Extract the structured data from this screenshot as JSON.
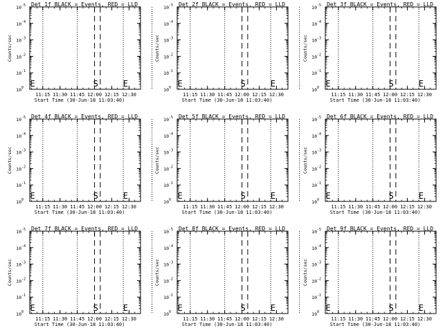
{
  "ytick_labels": [
    "10",
    "10",
    "10",
    "10",
    "10",
    "10"
  ],
  "ytick_exponents": [
    "0",
    "-1",
    "-2",
    "-3",
    "-4",
    "-5"
  ],
  "chart_data": [
    {
      "type": "line",
      "title": "Det 1f BLACK = Events, RED = LLD",
      "ylabel": "Counts/sec",
      "xlabel": "Start Time (30-Jun-18 11:03:40)",
      "xtick_labels": [
        "11:15",
        "11:30",
        "11:45",
        "12:00",
        "12:15",
        "12:30"
      ],
      "ylim": [
        1,
        100000
      ],
      "yscale": "log",
      "dotted_x": [
        11.15,
        11.45,
        12.25,
        12.5
      ],
      "dashed_x": [
        12.0,
        12.05
      ],
      "markers": [
        {
          "label": "S",
          "x": 12.01
        },
        {
          "label": "E",
          "x": 12.27
        },
        {
          "label": "E",
          "x": 11.06
        }
      ],
      "series": []
    },
    {
      "type": "line",
      "title": "Det 2f BLACK = Events, RED = LLD",
      "ylabel": "Counts/sec",
      "xlabel": "Start Time (30-Jun-18 11:03:40)",
      "xtick_labels": [
        "11:15",
        "11:30",
        "11:45",
        "12:00",
        "12:15",
        "12:30"
      ],
      "ylim": [
        1,
        100000
      ],
      "yscale": "log",
      "dotted_x": [
        11.15,
        11.45,
        12.25,
        12.5
      ],
      "dashed_x": [
        12.0,
        12.05
      ],
      "markers": [
        {
          "label": "S",
          "x": 12.01
        },
        {
          "label": "E",
          "x": 12.27
        },
        {
          "label": "E",
          "x": 11.06
        }
      ],
      "series": []
    },
    {
      "type": "line",
      "title": "Det 3f BLACK = Events, RED = LLD",
      "ylabel": "Counts/sec",
      "xlabel": "Start Time (30-Jun-18 11:03:40)",
      "xtick_labels": [
        "11:15",
        "11:30",
        "11:45",
        "12:00",
        "12:15",
        "12:30"
      ],
      "ylim": [
        1,
        100000
      ],
      "yscale": "log",
      "dotted_x": [
        11.15,
        11.45,
        12.25,
        12.5
      ],
      "dashed_x": [
        12.0,
        12.05
      ],
      "markers": [
        {
          "label": "S",
          "x": 12.01
        },
        {
          "label": "E",
          "x": 12.27
        },
        {
          "label": "E",
          "x": 11.06
        }
      ],
      "series": []
    },
    {
      "type": "line",
      "title": "Det 4f BLACK = Events, RED = LLD",
      "ylabel": "Counts/sec",
      "xlabel": "Start Time (30-Jun-18 11:03:40)",
      "xtick_labels": [
        "11:15",
        "11:30",
        "11:45",
        "12:00",
        "12:15",
        "12:30"
      ],
      "ylim": [
        1,
        100000
      ],
      "yscale": "log",
      "dotted_x": [
        11.15,
        11.45,
        12.25,
        12.5
      ],
      "dashed_x": [
        12.0,
        12.05
      ],
      "markers": [
        {
          "label": "S",
          "x": 12.01
        },
        {
          "label": "E",
          "x": 12.27
        },
        {
          "label": "E",
          "x": 11.06
        }
      ],
      "series": []
    },
    {
      "type": "line",
      "title": "Det 5f BLACK = Events, RED = LLD",
      "ylabel": "Counts/sec",
      "xlabel": "Start Time (30-Jun-18 11:03:40)",
      "xtick_labels": [
        "11:15",
        "11:30",
        "11:45",
        "12:00",
        "12:15",
        "12:30"
      ],
      "ylim": [
        1,
        100000
      ],
      "yscale": "log",
      "dotted_x": [
        11.15,
        11.45,
        12.25,
        12.5
      ],
      "dashed_x": [
        12.0,
        12.05
      ],
      "markers": [
        {
          "label": "S",
          "x": 12.01
        },
        {
          "label": "E",
          "x": 12.27
        },
        {
          "label": "E",
          "x": 11.06
        }
      ],
      "series": []
    },
    {
      "type": "line",
      "title": "Det 6f BLACK = Events, RED = LLD",
      "ylabel": "Counts/sec",
      "xlabel": "Start Time (30-Jun-18 11:03:40)",
      "xtick_labels": [
        "11:15",
        "11:30",
        "11:45",
        "12:00",
        "12:15",
        "12:30"
      ],
      "ylim": [
        1,
        100000
      ],
      "yscale": "log",
      "dotted_x": [
        11.15,
        11.45,
        12.25,
        12.5
      ],
      "dashed_x": [
        12.0,
        12.05
      ],
      "markers": [
        {
          "label": "S",
          "x": 12.01
        },
        {
          "label": "E",
          "x": 12.27
        },
        {
          "label": "E",
          "x": 11.06
        }
      ],
      "series": []
    },
    {
      "type": "line",
      "title": "Det 7f BLACK = Events, RED = LLD",
      "ylabel": "Counts/sec",
      "xlabel": "Start Time (30-Jun-18 11:03:40)",
      "xtick_labels": [
        "11:15",
        "11:30",
        "11:45",
        "12:00",
        "12:15",
        "12:30"
      ],
      "ylim": [
        1,
        100000
      ],
      "yscale": "log",
      "dotted_x": [
        11.15,
        11.45,
        12.25,
        12.5
      ],
      "dashed_x": [
        12.0,
        12.05
      ],
      "markers": [
        {
          "label": "S",
          "x": 12.01
        },
        {
          "label": "E",
          "x": 12.27
        },
        {
          "label": "E",
          "x": 11.06
        }
      ],
      "series": []
    },
    {
      "type": "line",
      "title": "Det 8f BLACK = Events, RED = LLD",
      "ylabel": "Counts/sec",
      "xlabel": "Start Time (30-Jun-18 11:03:40)",
      "xtick_labels": [
        "11:15",
        "11:30",
        "11:45",
        "12:00",
        "12:15",
        "12:30"
      ],
      "ylim": [
        1,
        100000
      ],
      "yscale": "log",
      "dotted_x": [
        11.15,
        11.45,
        12.25,
        12.5
      ],
      "dashed_x": [
        12.0,
        12.05
      ],
      "markers": [
        {
          "label": "S",
          "x": 12.01
        },
        {
          "label": "E",
          "x": 12.27
        },
        {
          "label": "E",
          "x": 11.06
        }
      ],
      "series": []
    },
    {
      "type": "line",
      "title": "Det 9f BLACK = Events, RED = LLD",
      "ylabel": "Counts/sec",
      "xlabel": "Start Time (30-Jun-18 11:03:40)",
      "xtick_labels": [
        "11:15",
        "11:30",
        "11:45",
        "12:00",
        "12:15",
        "12:30"
      ],
      "ylim": [
        1,
        100000
      ],
      "yscale": "log",
      "dotted_x": [
        11.15,
        11.45,
        12.25,
        12.5
      ],
      "dashed_x": [
        12.0,
        12.05
      ],
      "markers": [
        {
          "label": "S",
          "x": 12.01
        },
        {
          "label": "E",
          "x": 12.27
        },
        {
          "label": "E",
          "x": 11.06
        }
      ],
      "series": []
    }
  ]
}
